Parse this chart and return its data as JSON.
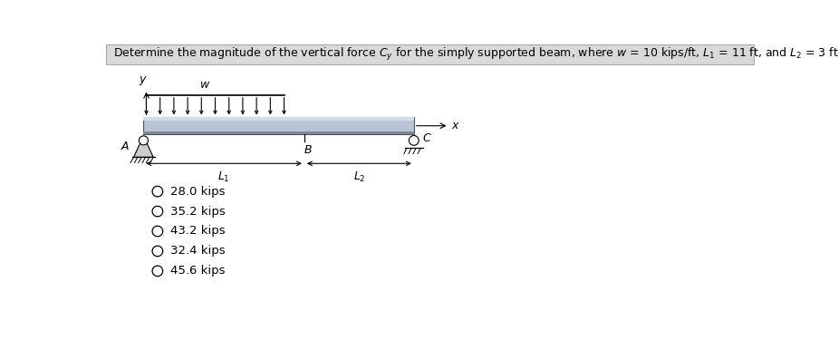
{
  "choices": [
    "28.0 kips",
    "35.2 kips",
    "43.2 kips",
    "32.4 kips",
    "45.6 kips"
  ],
  "background_color": "#ffffff",
  "title_bg_color": "#d9d9d9",
  "beam_fill": "#b8c4d4",
  "beam_border": "#555555"
}
